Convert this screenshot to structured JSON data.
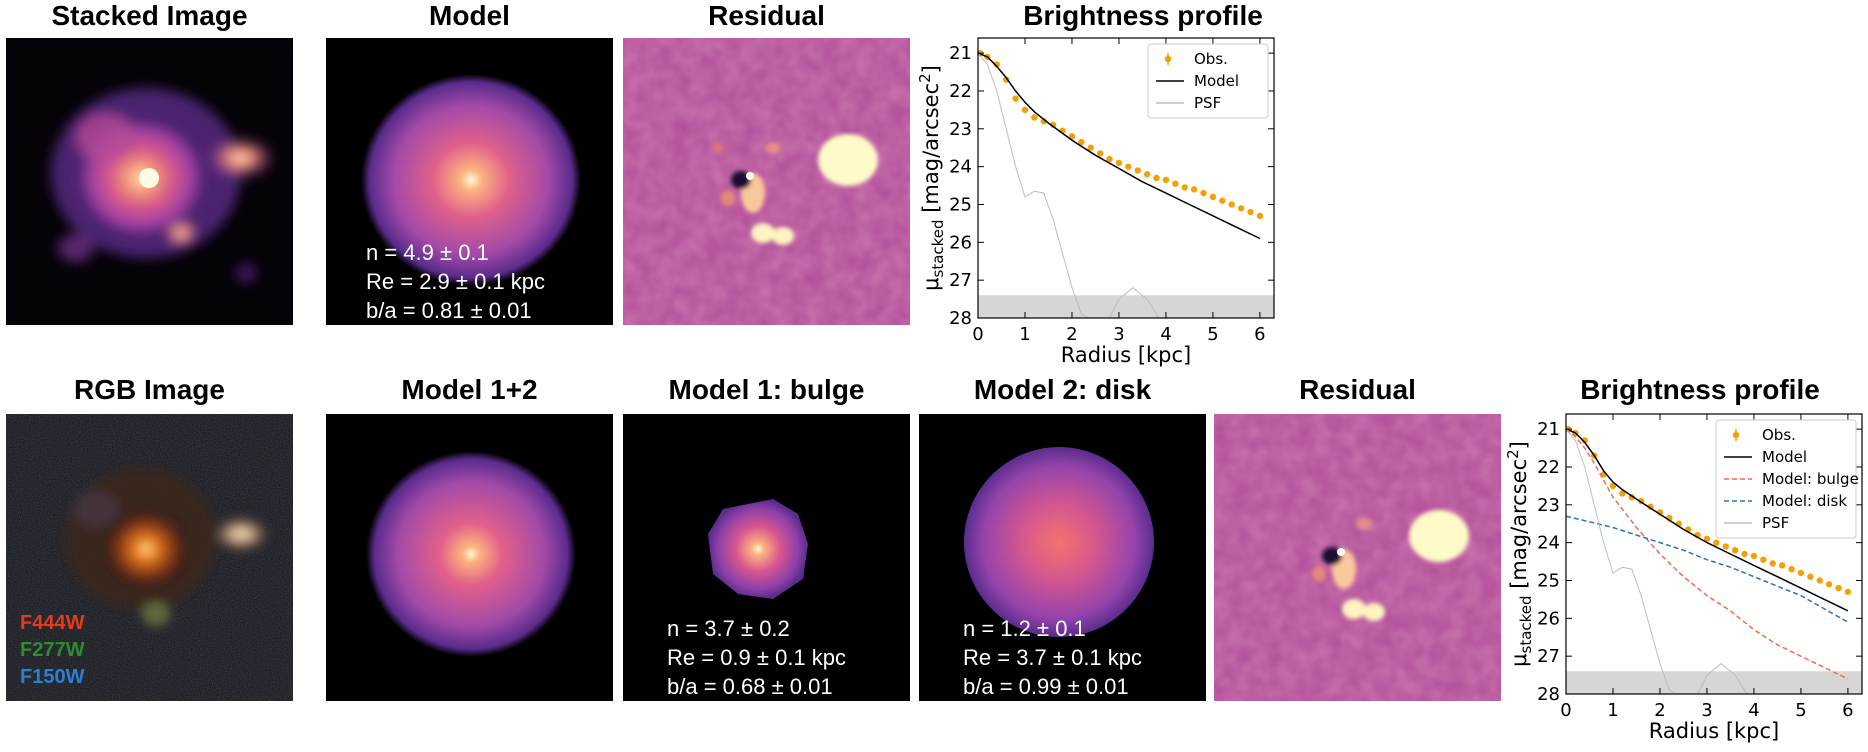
{
  "figure": {
    "row1": {
      "stacked_title": "Stacked Image",
      "model_title": "Model",
      "residual_title": "Residual",
      "profile_title": "Brightness profile",
      "model_labels": [
        "n = 4.9 ± 0.1",
        "Re = 2.9 ± 0.1 kpc",
        "b/a = 0.81 ± 0.01"
      ]
    },
    "row2": {
      "rgb_title": "RGB Image",
      "model12_title": "Model 1+2",
      "bulge_title": "Model 1: bulge",
      "disk_title": "Model 2: disk",
      "residual_title": "Residual",
      "profile_title": "Brightness profile",
      "filters": [
        {
          "name": "F444W",
          "color": "#e8391d"
        },
        {
          "name": "F277W",
          "color": "#2e8b2e"
        },
        {
          "name": "F150W",
          "color": "#2a7fd4"
        }
      ],
      "bulge_labels": [
        "n = 3.7 ± 0.2",
        "Re = 0.9 ± 0.1 kpc",
        "b/a = 0.68 ± 0.01"
      ],
      "disk_labels": [
        "n = 1.2 ± 0.1",
        "Re = 3.7 ± 0.1 kpc",
        "b/a = 0.99 ± 0.01"
      ]
    }
  },
  "chart_data": [
    {
      "type": "line",
      "title": "Brightness profile",
      "xlabel": "Radius [kpc]",
      "ylabel": "μstacked [mag/arcsec2]",
      "ylabel_main": "μ",
      "ylabel_sub": "stacked",
      "ylabel_unit": " [mag/arcsec",
      "ylabel_sup": "2",
      "ylabel_close": "]",
      "xlim": [
        0,
        6.3
      ],
      "ylim": [
        28,
        20.6
      ],
      "xticks": [
        0,
        1,
        2,
        3,
        4,
        5,
        6
      ],
      "yticks": [
        21,
        22,
        23,
        24,
        25,
        26,
        27,
        28
      ],
      "limit_band": [
        27.4,
        28
      ],
      "legend_position": "top-right",
      "series": [
        {
          "name": "Obs.",
          "kind": "points",
          "color": "#f5a000",
          "x": [
            0.05,
            0.2,
            0.4,
            0.6,
            0.8,
            1.0,
            1.2,
            1.4,
            1.6,
            1.8,
            2.0,
            2.2,
            2.4,
            2.6,
            2.8,
            3.0,
            3.2,
            3.4,
            3.6,
            3.8,
            4.0,
            4.2,
            4.4,
            4.6,
            4.8,
            5.0,
            5.2,
            5.4,
            5.6,
            5.8,
            6.0
          ],
          "y": [
            21.0,
            21.1,
            21.3,
            21.7,
            22.2,
            22.5,
            22.7,
            22.8,
            22.9,
            23.05,
            23.2,
            23.35,
            23.5,
            23.65,
            23.8,
            23.9,
            24.0,
            24.1,
            24.2,
            24.3,
            24.35,
            24.45,
            24.55,
            24.6,
            24.7,
            24.8,
            24.9,
            25.0,
            25.1,
            25.2,
            25.3
          ]
        },
        {
          "name": "Model",
          "kind": "line",
          "color": "#000000",
          "dash": "",
          "x": [
            0,
            0.2,
            0.4,
            0.6,
            0.8,
            1.0,
            1.2,
            1.5,
            2.0,
            2.5,
            3.0,
            3.5,
            4.0,
            4.5,
            5.0,
            5.5,
            6.0
          ],
          "y": [
            21.0,
            21.1,
            21.35,
            21.65,
            22.0,
            22.3,
            22.55,
            22.85,
            23.3,
            23.7,
            24.05,
            24.4,
            24.7,
            25.0,
            25.3,
            25.6,
            25.9
          ]
        },
        {
          "name": "PSF",
          "kind": "line",
          "color": "#bdbdbd",
          "dash": "",
          "x": [
            0,
            0.2,
            0.4,
            0.6,
            0.8,
            1.0,
            1.2,
            1.4,
            1.6,
            1.8,
            2.0,
            2.2,
            2.5,
            2.8,
            3.0,
            3.3,
            3.6,
            3.9
          ],
          "y": [
            21.0,
            21.3,
            22.0,
            23.0,
            24.0,
            24.8,
            24.65,
            24.7,
            25.4,
            26.3,
            27.2,
            27.9,
            28.1,
            28.0,
            27.5,
            27.2,
            27.5,
            28.1
          ]
        }
      ]
    },
    {
      "type": "line",
      "title": "Brightness profile",
      "xlabel": "Radius [kpc]",
      "ylabel": "μstacked [mag/arcsec2]",
      "ylabel_main": "μ",
      "ylabel_sub": "stacked",
      "ylabel_unit": " [mag/arcsec",
      "ylabel_sup": "2",
      "ylabel_close": "]",
      "xlim": [
        0,
        6.3
      ],
      "ylim": [
        28,
        20.6
      ],
      "xticks": [
        0,
        1,
        2,
        3,
        4,
        5,
        6
      ],
      "yticks": [
        21,
        22,
        23,
        24,
        25,
        26,
        27,
        28
      ],
      "limit_band": [
        27.4,
        28
      ],
      "legend_position": "top-right",
      "series": [
        {
          "name": "Obs.",
          "kind": "points",
          "color": "#f5a000",
          "x": [
            0.05,
            0.2,
            0.4,
            0.6,
            0.8,
            1.0,
            1.2,
            1.4,
            1.6,
            1.8,
            2.0,
            2.2,
            2.4,
            2.6,
            2.8,
            3.0,
            3.2,
            3.4,
            3.6,
            3.8,
            4.0,
            4.2,
            4.4,
            4.6,
            4.8,
            5.0,
            5.2,
            5.4,
            5.6,
            5.8,
            6.0
          ],
          "y": [
            21.0,
            21.1,
            21.3,
            21.7,
            22.2,
            22.5,
            22.7,
            22.8,
            22.9,
            23.05,
            23.2,
            23.35,
            23.5,
            23.65,
            23.8,
            23.9,
            24.0,
            24.1,
            24.2,
            24.3,
            24.35,
            24.45,
            24.55,
            24.6,
            24.7,
            24.8,
            24.9,
            25.0,
            25.1,
            25.2,
            25.3
          ]
        },
        {
          "name": "Model",
          "kind": "line",
          "color": "#000000",
          "dash": "",
          "x": [
            0,
            0.2,
            0.4,
            0.6,
            0.8,
            1.0,
            1.2,
            1.5,
            2.0,
            2.5,
            3.0,
            3.5,
            4.0,
            4.5,
            5.0,
            5.5,
            6.0
          ],
          "y": [
            21.0,
            21.1,
            21.35,
            21.7,
            22.1,
            22.4,
            22.6,
            22.85,
            23.25,
            23.65,
            24.0,
            24.3,
            24.6,
            24.9,
            25.2,
            25.5,
            25.8
          ]
        },
        {
          "name": "Model: bulge",
          "kind": "line",
          "color": "#f26b4a",
          "dash": "5,3",
          "x": [
            0,
            0.2,
            0.4,
            0.6,
            0.8,
            1.0,
            1.5,
            2.0,
            2.5,
            3.0,
            3.5,
            4.0,
            4.5,
            5.0,
            5.5,
            6.0
          ],
          "y": [
            21.0,
            21.2,
            21.5,
            21.9,
            22.35,
            22.8,
            23.6,
            24.3,
            24.9,
            25.4,
            25.8,
            26.3,
            26.7,
            27.0,
            27.3,
            27.6
          ]
        },
        {
          "name": "Model: disk",
          "kind": "line",
          "color": "#1f77b4",
          "dash": "5,3",
          "x": [
            0,
            0.5,
            1.0,
            1.5,
            2.0,
            2.5,
            3.0,
            3.5,
            4.0,
            4.5,
            5.0,
            5.5,
            6.0
          ],
          "y": [
            23.3,
            23.45,
            23.6,
            23.8,
            24.0,
            24.2,
            24.45,
            24.65,
            24.9,
            25.15,
            25.4,
            25.75,
            26.1
          ]
        },
        {
          "name": "PSF",
          "kind": "line",
          "color": "#bdbdbd",
          "dash": "",
          "x": [
            0,
            0.2,
            0.4,
            0.6,
            0.8,
            1.0,
            1.2,
            1.4,
            1.6,
            1.8,
            2.0,
            2.2,
            2.5,
            2.8,
            3.0,
            3.3,
            3.6,
            3.9
          ],
          "y": [
            21.0,
            21.3,
            22.0,
            23.0,
            24.0,
            24.8,
            24.65,
            24.7,
            25.4,
            26.3,
            27.2,
            27.9,
            28.1,
            28.0,
            27.5,
            27.2,
            27.5,
            28.1
          ]
        }
      ]
    }
  ]
}
